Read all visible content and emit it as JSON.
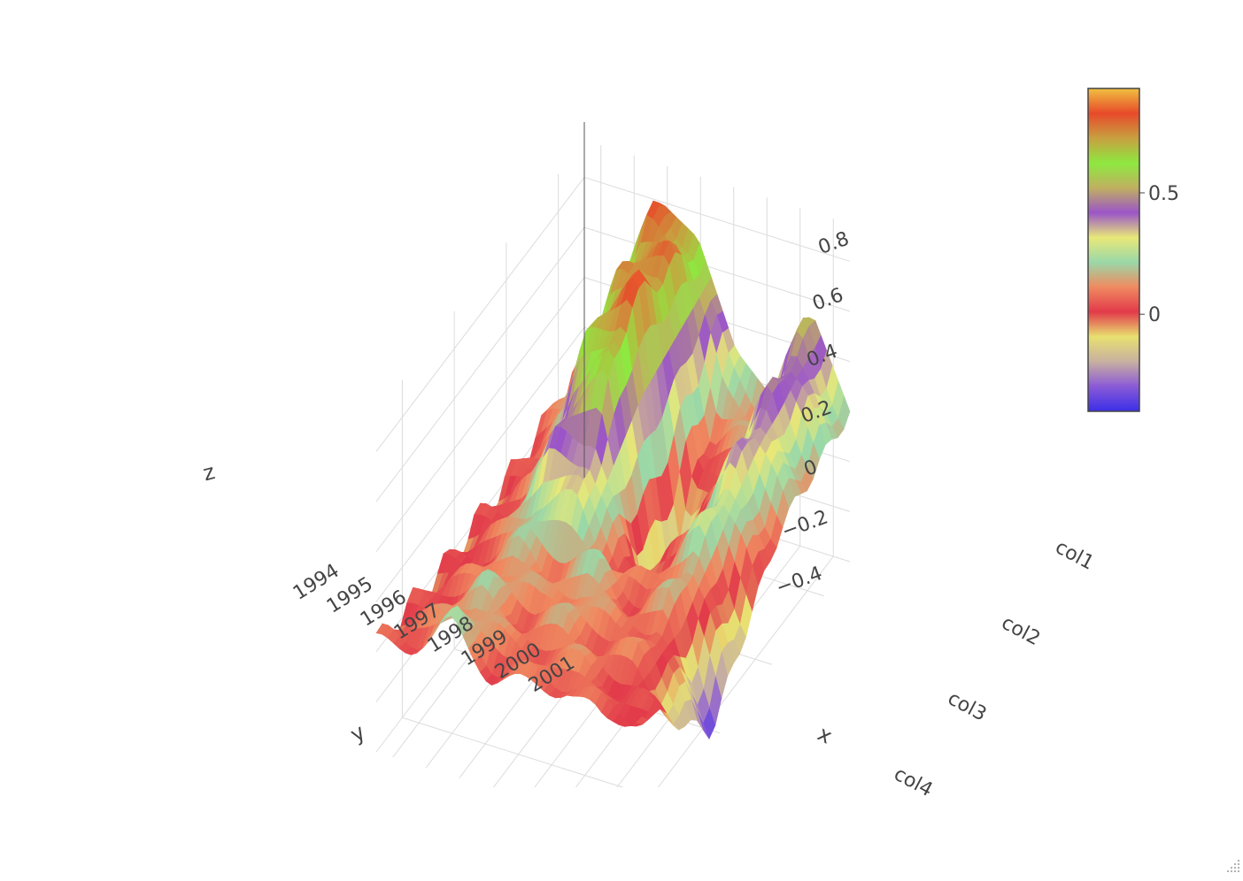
{
  "chart_data": {
    "type": "surface",
    "title": "",
    "x_axis": {
      "title": "x",
      "categories": [
        "col1",
        "col2",
        "col3",
        "col4"
      ]
    },
    "y_axis": {
      "title": "y",
      "ticks": [
        "1994",
        "1995",
        "1996",
        "1997",
        "1998",
        "1999",
        "2000",
        "2001"
      ]
    },
    "z_axis": {
      "title": "z",
      "ticks": [
        "−0.4",
        "−0.2",
        "0",
        "0.2",
        "0.4",
        "0.6",
        "0.8"
      ],
      "range": [
        -0.4,
        0.95
      ]
    },
    "colorbar": {
      "ticks": [
        "0",
        "0.5"
      ],
      "range": [
        -0.4,
        0.93
      ]
    },
    "grid": true,
    "legend": "colorbar-right",
    "colorscale": [
      "#3b2fe8",
      "#8a5ad6",
      "#c8b0a0",
      "#e8e070",
      "#e23a4a",
      "#f08a60",
      "#9ad8a8",
      "#e8e878",
      "#9b55c8",
      "#c0b060",
      "#8ee840",
      "#c8a040",
      "#e84a2a",
      "#f0c040"
    ],
    "series": [
      {
        "rows_y": [
          "1994",
          "1995",
          "1996",
          "1997",
          "1998",
          "1999",
          "2000",
          "2001"
        ],
        "cols_x": [
          "col1",
          "col2",
          "col3",
          "col4"
        ],
        "z": [
          [
            0.05,
            0.0,
            -0.02,
            0.03
          ],
          [
            0.45,
            0.1,
            0.05,
            0.08
          ],
          [
            0.8,
            0.65,
            0.15,
            0.2
          ],
          [
            0.7,
            0.85,
            0.1,
            0.05
          ],
          [
            0.3,
            -0.3,
            0.2,
            0.05
          ],
          [
            0.15,
            0.05,
            0.05,
            0.1
          ],
          [
            0.55,
            0.4,
            0.15,
            0.0
          ],
          [
            0.2,
            0.1,
            -0.35,
            0.1
          ]
        ]
      }
    ]
  }
}
